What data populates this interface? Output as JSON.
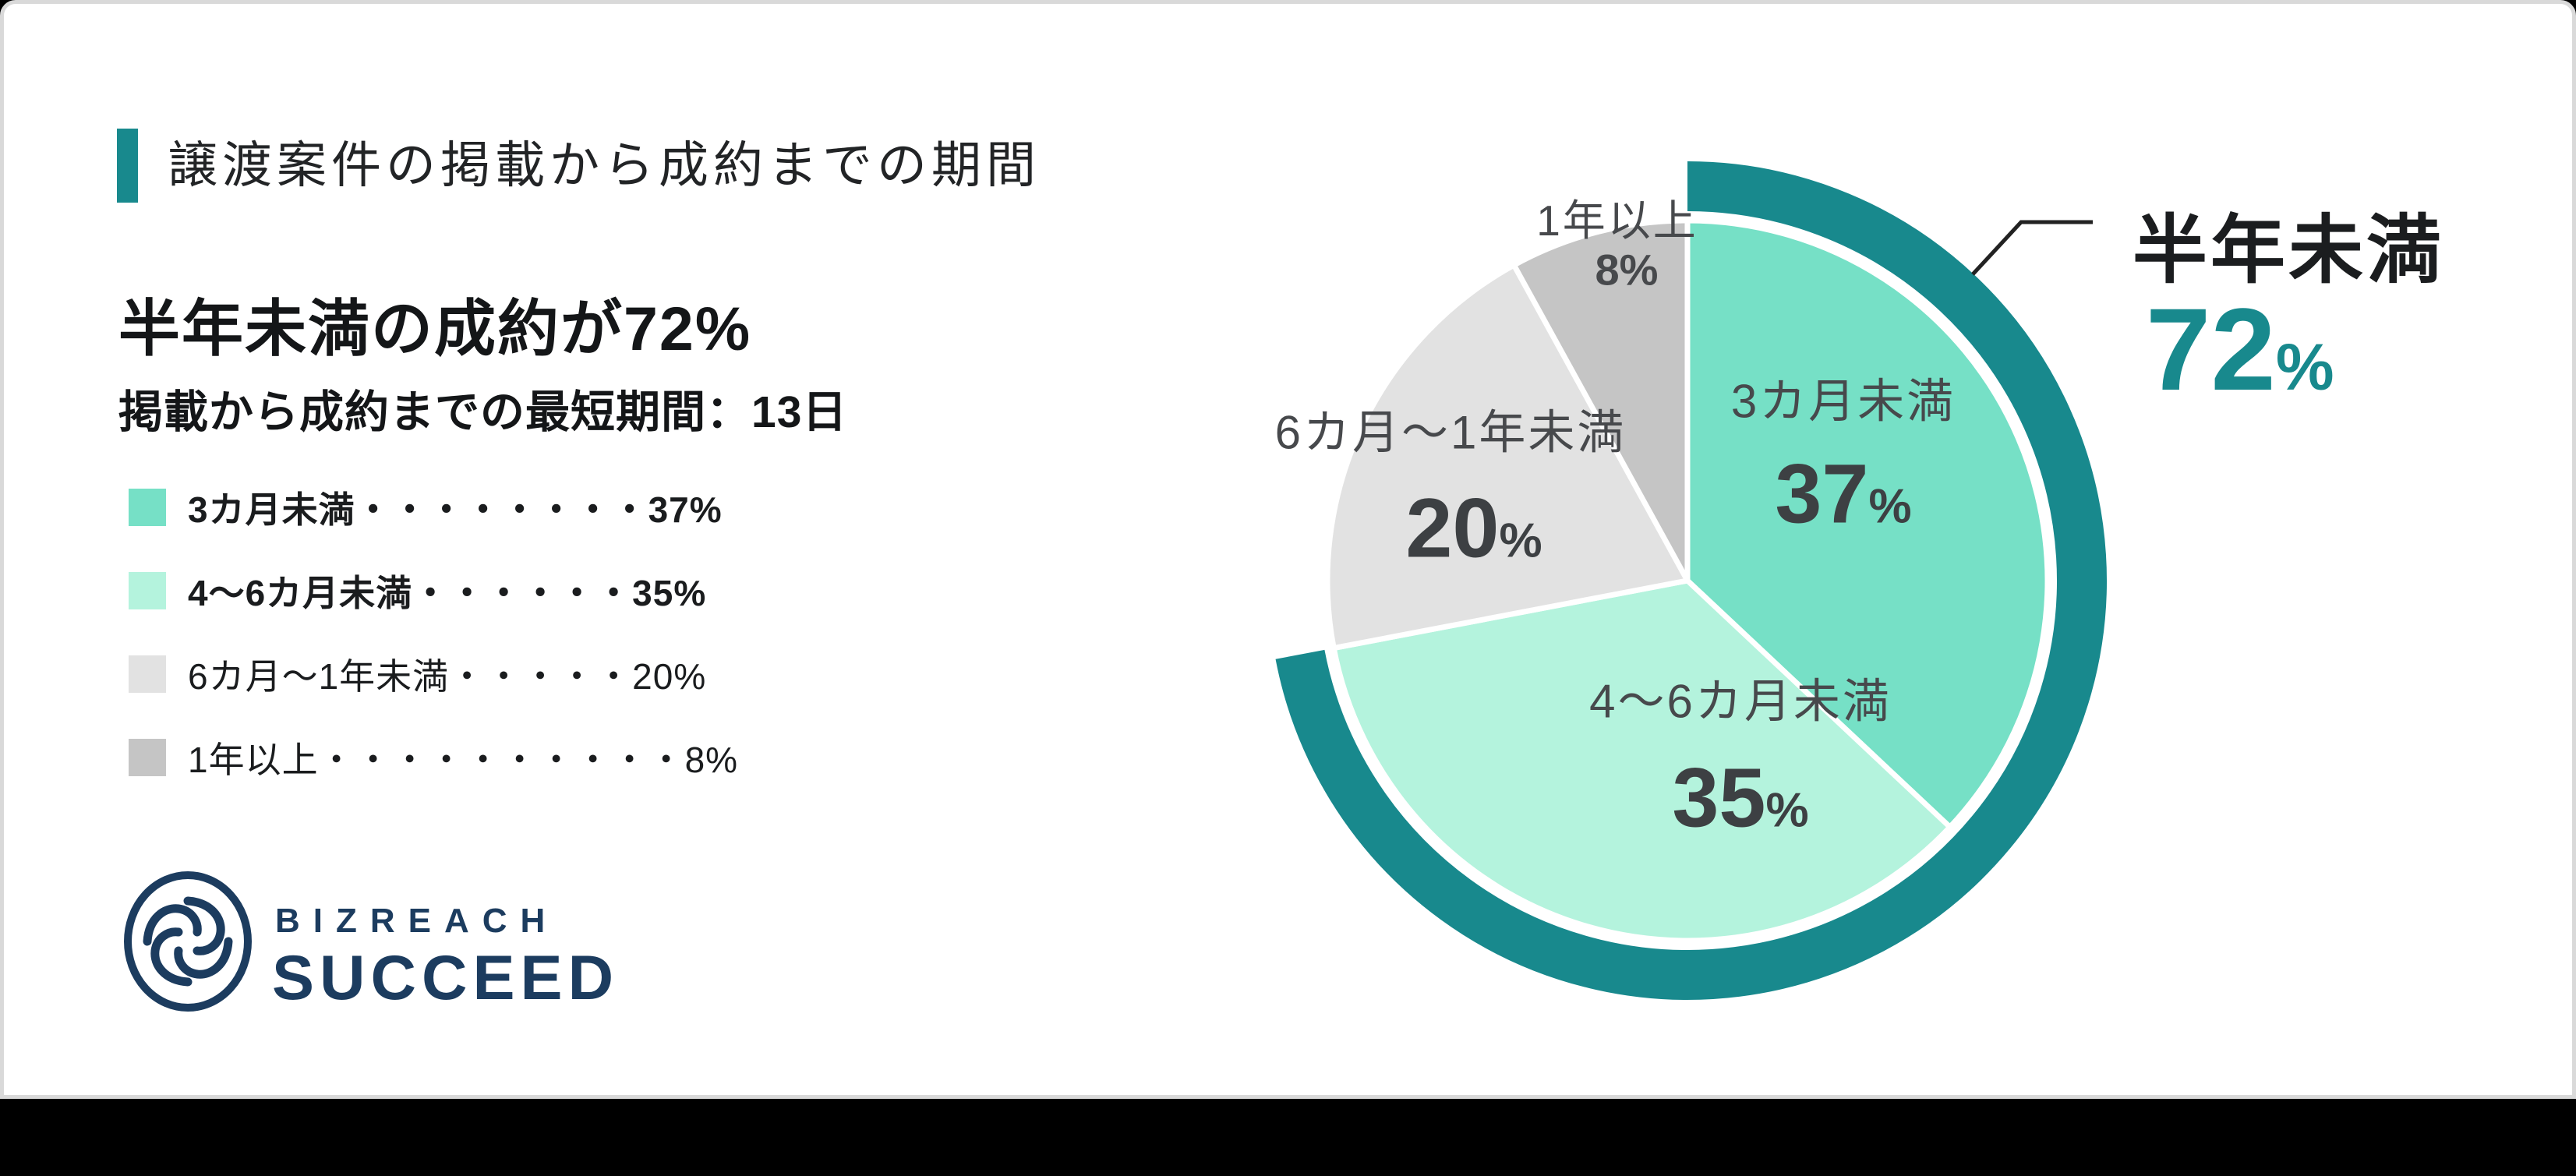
{
  "chart_data": {
    "type": "pie",
    "title": "譲渡案件の掲載から成約までの期間",
    "categories": [
      "3カ月未満",
      "4〜6カ月未満",
      "6カ月〜1年未満",
      "1年以上"
    ],
    "values": [
      37,
      35,
      20,
      8
    ],
    "colors": [
      "#76e0c6",
      "#b4f3dd",
      "#e2e2e2",
      "#c5c5c5"
    ],
    "highlight": {
      "label": "半年未満",
      "value": 72,
      "color": "#18898d"
    },
    "legend_position": "left",
    "annotations": [
      "半年未満の成約が72%",
      "掲載から成約までの最短期間：13日"
    ]
  },
  "header": {
    "title": "譲渡案件の掲載から成約までの期間"
  },
  "headline": {
    "title": "半年未満の成約が72%",
    "subtitle": "掲載から成約までの最短期間：13日"
  },
  "legend": {
    "items": [
      {
        "label": "3カ月未満",
        "dots": "・・・・・・・・",
        "value": "37%",
        "color": "#76e0c6"
      },
      {
        "label": "4〜6カ月未満",
        "dots": "・・・・・・",
        "value": "35%",
        "color": "#b4f3dd"
      },
      {
        "label": "6カ月〜1年未満",
        "dots": "・・・・・",
        "value": "20%",
        "color": "#e2e2e2"
      },
      {
        "label": "1年以上",
        "dots": "・・・・・・・・・・",
        "value": "8%",
        "color": "#c5c5c5"
      }
    ]
  },
  "pie": {
    "slices": [
      {
        "label": "3カ月未満",
        "number": "37",
        "unit": "%"
      },
      {
        "label": "4〜6カ月未満",
        "number": "35",
        "unit": "%"
      },
      {
        "label": "6カ月〜1年未満",
        "number": "20",
        "unit": "%"
      },
      {
        "label": "1年以上",
        "number": "8",
        "unit": "%"
      }
    ],
    "callout": {
      "label": "半年未満",
      "number": "72",
      "unit": "%"
    }
  },
  "logo": {
    "brand": "BIZREACH",
    "product": "SUCCEED",
    "color": "#1c3c5f"
  }
}
